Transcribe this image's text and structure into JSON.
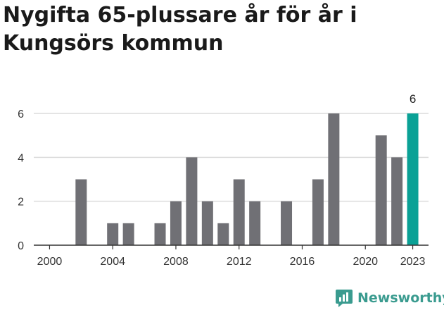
{
  "title": "Nygifta 65-plussare år för år i Kungsörs kommun",
  "brand": {
    "name": "Newsworthy",
    "icon": "newsworthy-logo-icon",
    "color": "#3a9b8f"
  },
  "colors": {
    "bar": "#707075",
    "highlight": "#0aa196",
    "grid": "#dcdcdc",
    "axis": "#333333"
  },
  "chart_data": {
    "type": "bar",
    "x": [
      2002,
      2004,
      2005,
      2007,
      2008,
      2009,
      2010,
      2011,
      2012,
      2013,
      2015,
      2017,
      2018,
      2021,
      2022,
      2023
    ],
    "values": [
      3,
      1,
      1,
      1,
      2,
      4,
      2,
      1,
      3,
      2,
      2,
      3,
      6,
      5,
      4,
      6
    ],
    "highlight_x": 2023,
    "highlight_label": "6",
    "xlim": [
      1999,
      2024
    ],
    "ylim": [
      0,
      6
    ],
    "x_ticks": [
      "2000",
      "2004",
      "2008",
      "2012",
      "2016",
      "2020",
      "2023"
    ],
    "y_ticks": [
      "0",
      "2",
      "4",
      "6"
    ],
    "title": "Nygifta 65-plussare år för år i Kungsörs kommun",
    "xlabel": "",
    "ylabel": "",
    "grid": true
  }
}
